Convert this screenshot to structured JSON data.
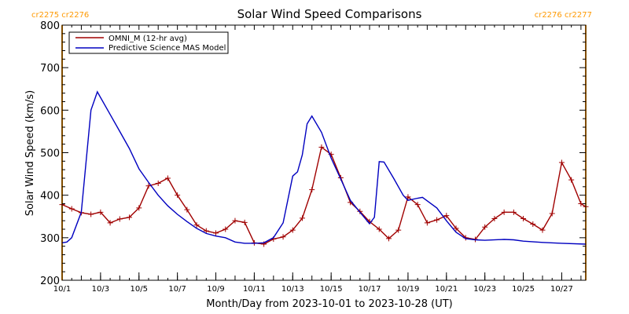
{
  "chart_data": {
    "type": "line",
    "title": "Solar Wind Speed Comparisons",
    "xlabel": "Month/Day from 2023-10-01 to 2023-10-28 (UT)",
    "ylabel": "Solar Wind Speed (km/s)",
    "xlim": [
      "2023-10-01T00:00",
      "2023-10-28T06:00"
    ],
    "ylim": [
      200,
      800
    ],
    "y_ticks": [
      200,
      300,
      400,
      500,
      600,
      700,
      800
    ],
    "x_ticks": [
      {
        "x": "2023-10-01T00:00",
        "label": "10/1"
      },
      {
        "x": "2023-10-03T00:00",
        "label": "10/3"
      },
      {
        "x": "2023-10-05T00:00",
        "label": "10/5"
      },
      {
        "x": "2023-10-07T00:00",
        "label": "10/7"
      },
      {
        "x": "2023-10-09T00:00",
        "label": "10/9"
      },
      {
        "x": "2023-10-11T00:00",
        "label": "10/11"
      },
      {
        "x": "2023-10-13T00:00",
        "label": "10/13"
      },
      {
        "x": "2023-10-15T00:00",
        "label": "10/15"
      },
      {
        "x": "2023-10-17T00:00",
        "label": "10/17"
      },
      {
        "x": "2023-10-19T00:00",
        "label": "10/19"
      },
      {
        "x": "2023-10-21T00:00",
        "label": "10/21"
      },
      {
        "x": "2023-10-23T00:00",
        "label": "10/23"
      },
      {
        "x": "2023-10-25T00:00",
        "label": "10/25"
      },
      {
        "x": "2023-10-27T00:00",
        "label": "10/27"
      }
    ],
    "legend_position": "top-left",
    "rotation_markers": [
      {
        "x": "2023-10-01T00:00",
        "label": "cr2275 cr2276",
        "label_align": "start"
      },
      {
        "x": "2023-10-28T06:00",
        "label": "cr2276 cr2277",
        "label_align": "end"
      }
    ],
    "series": [
      {
        "name": "OMNI_M (12-hr avg)",
        "color": "#a00000",
        "markers": "plus",
        "points": [
          [
            "2023-10-01T00:00",
            378
          ],
          [
            "2023-10-01T12:00",
            368
          ],
          [
            "2023-10-02T00:00",
            359
          ],
          [
            "2023-10-02T12:00",
            355
          ],
          [
            "2023-10-03T00:00",
            360
          ],
          [
            "2023-10-03T12:00",
            335
          ],
          [
            "2023-10-04T00:00",
            344
          ],
          [
            "2023-10-04T12:00",
            348
          ],
          [
            "2023-10-05T00:00",
            370
          ],
          [
            "2023-10-05T12:00",
            422
          ],
          [
            "2023-10-06T00:00",
            428
          ],
          [
            "2023-10-06T12:00",
            440
          ],
          [
            "2023-10-07T00:00",
            400
          ],
          [
            "2023-10-07T12:00",
            366
          ],
          [
            "2023-10-08T00:00",
            330
          ],
          [
            "2023-10-08T12:00",
            316
          ],
          [
            "2023-10-09T00:00",
            311
          ],
          [
            "2023-10-09T12:00",
            320
          ],
          [
            "2023-10-10T00:00",
            340
          ],
          [
            "2023-10-10T12:00",
            336
          ],
          [
            "2023-10-11T00:00",
            288
          ],
          [
            "2023-10-11T12:00",
            285
          ],
          [
            "2023-10-12T00:00",
            297
          ],
          [
            "2023-10-12T12:00",
            302
          ],
          [
            "2023-10-13T00:00",
            318
          ],
          [
            "2023-10-13T12:00",
            346
          ],
          [
            "2023-10-14T00:00",
            413
          ],
          [
            "2023-10-14T12:00",
            513
          ],
          [
            "2023-10-15T00:00",
            496
          ],
          [
            "2023-10-15T12:00",
            441
          ],
          [
            "2023-10-16T00:00",
            383
          ],
          [
            "2023-10-16T12:00",
            362
          ],
          [
            "2023-10-17T00:00",
            338
          ],
          [
            "2023-10-17T12:00",
            320
          ],
          [
            "2023-10-18T00:00",
            298
          ],
          [
            "2023-10-18T12:00",
            318
          ],
          [
            "2023-10-19T00:00",
            396
          ],
          [
            "2023-10-19T12:00",
            378
          ],
          [
            "2023-10-20T00:00",
            335
          ],
          [
            "2023-10-20T12:00",
            342
          ],
          [
            "2023-10-21T00:00",
            352
          ],
          [
            "2023-10-21T12:00",
            322
          ],
          [
            "2023-10-22T00:00",
            300
          ],
          [
            "2023-10-22T12:00",
            296
          ],
          [
            "2023-10-23T00:00",
            325
          ],
          [
            "2023-10-23T12:00",
            345
          ],
          [
            "2023-10-24T00:00",
            360
          ],
          [
            "2023-10-24T12:00",
            360
          ],
          [
            "2023-10-25T00:00",
            345
          ],
          [
            "2023-10-25T12:00",
            332
          ],
          [
            "2023-10-26T00:00",
            318
          ],
          [
            "2023-10-26T12:00",
            357
          ],
          [
            "2023-10-27T00:00",
            477
          ],
          [
            "2023-10-27T12:00",
            436
          ],
          [
            "2023-10-28T00:00",
            380
          ],
          [
            "2023-10-28T06:00",
            373
          ]
        ]
      },
      {
        "name": "Predictive Science MAS Model",
        "color": "#0000c0",
        "markers": "none",
        "points": [
          [
            "2023-10-01T00:00",
            288
          ],
          [
            "2023-10-01T06:00",
            290
          ],
          [
            "2023-10-01T12:00",
            300
          ],
          [
            "2023-10-02T00:00",
            360
          ],
          [
            "2023-10-02T12:00",
            600
          ],
          [
            "2023-10-02T20:00",
            643
          ],
          [
            "2023-10-03T12:00",
            590
          ],
          [
            "2023-10-04T00:00",
            550
          ],
          [
            "2023-10-04T12:00",
            510
          ],
          [
            "2023-10-05T00:00",
            462
          ],
          [
            "2023-10-05T12:00",
            430
          ],
          [
            "2023-10-06T00:00",
            400
          ],
          [
            "2023-10-06T12:00",
            375
          ],
          [
            "2023-10-07T00:00",
            355
          ],
          [
            "2023-10-07T12:00",
            338
          ],
          [
            "2023-10-08T00:00",
            322
          ],
          [
            "2023-10-08T12:00",
            310
          ],
          [
            "2023-10-09T00:00",
            304
          ],
          [
            "2023-10-09T12:00",
            300
          ],
          [
            "2023-10-10T00:00",
            290
          ],
          [
            "2023-10-10T12:00",
            287
          ],
          [
            "2023-10-11T00:00",
            287
          ],
          [
            "2023-10-11T12:00",
            288
          ],
          [
            "2023-10-12T00:00",
            300
          ],
          [
            "2023-10-12T12:00",
            335
          ],
          [
            "2023-10-13T00:00",
            445
          ],
          [
            "2023-10-13T06:00",
            455
          ],
          [
            "2023-10-13T12:00",
            495
          ],
          [
            "2023-10-13T18:00",
            568
          ],
          [
            "2023-10-14T00:00",
            586
          ],
          [
            "2023-10-14T12:00",
            548
          ],
          [
            "2023-10-15T00:00",
            487
          ],
          [
            "2023-10-15T12:00",
            438
          ],
          [
            "2023-10-16T00:00",
            388
          ],
          [
            "2023-10-16T12:00",
            360
          ],
          [
            "2023-10-17T00:00",
            333
          ],
          [
            "2023-10-17T06:00",
            348
          ],
          [
            "2023-10-17T12:00",
            479
          ],
          [
            "2023-10-17T18:00",
            478
          ],
          [
            "2023-10-18T06:00",
            440
          ],
          [
            "2023-10-18T18:00",
            400
          ],
          [
            "2023-10-19T00:00",
            388
          ],
          [
            "2023-10-19T12:00",
            393
          ],
          [
            "2023-10-19T18:00",
            395
          ],
          [
            "2023-10-20T12:00",
            370
          ],
          [
            "2023-10-21T00:00",
            340
          ],
          [
            "2023-10-21T12:00",
            313
          ],
          [
            "2023-10-22T00:00",
            298
          ],
          [
            "2023-10-22T12:00",
            295
          ],
          [
            "2023-10-23T00:00",
            294
          ],
          [
            "2023-10-24T00:00",
            296
          ],
          [
            "2023-10-24T12:00",
            295
          ],
          [
            "2023-10-25T00:00",
            292
          ],
          [
            "2023-10-26T00:00",
            289
          ],
          [
            "2023-10-27T00:00",
            287
          ],
          [
            "2023-10-28T06:00",
            285
          ]
        ]
      }
    ]
  }
}
